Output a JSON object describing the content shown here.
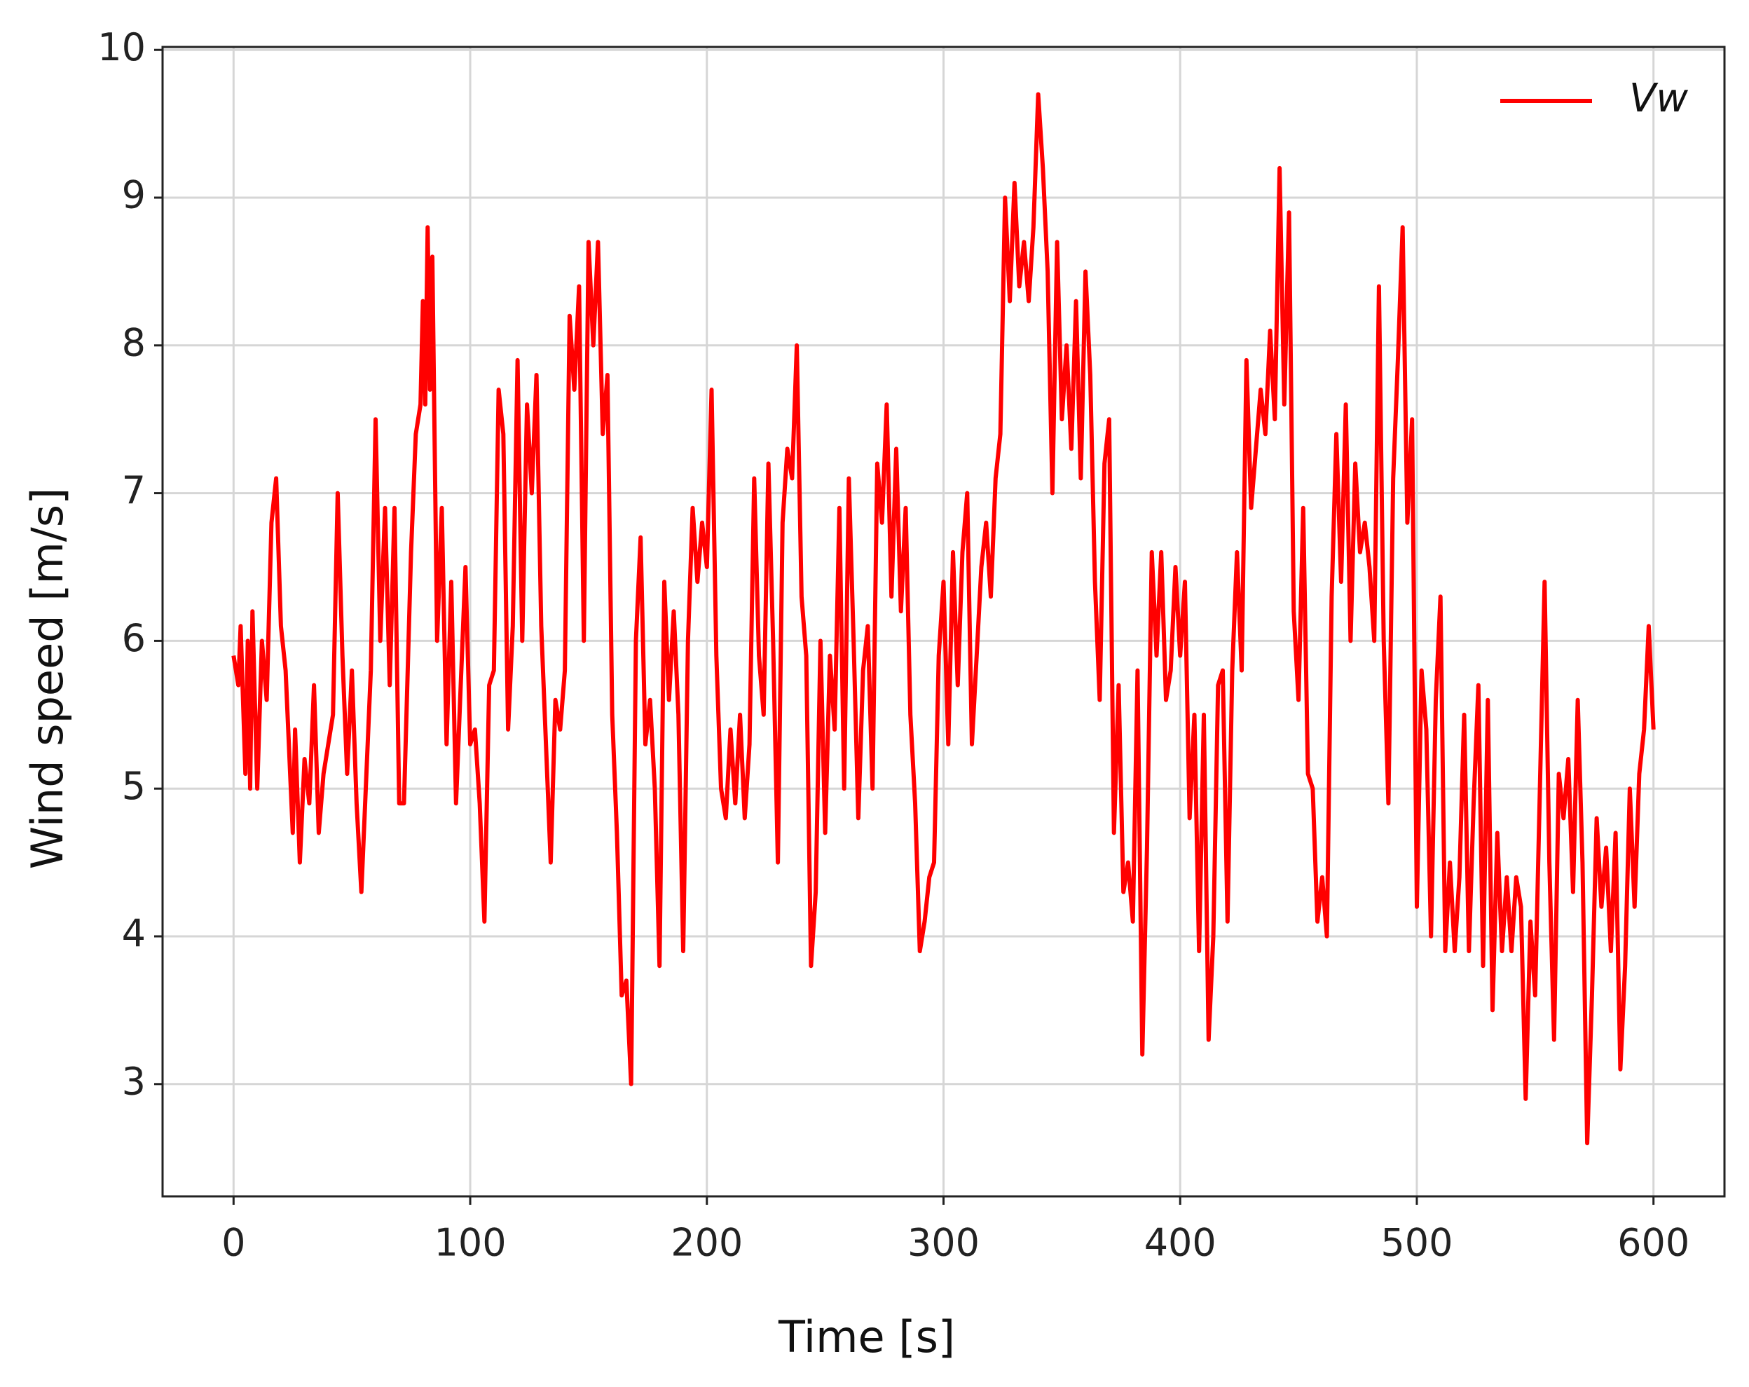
{
  "chart_data": {
    "type": "line",
    "x_label": "Time [s]",
    "y_label": "Wind speed [m/s]",
    "xlim": [
      -30,
      630
    ],
    "ylim": [
      2.24,
      10.02
    ],
    "xticks": [
      0,
      100,
      200,
      300,
      400,
      500,
      600
    ],
    "yticks": [
      3,
      4,
      5,
      6,
      7,
      8,
      9,
      10
    ],
    "grid": true,
    "legend": "upper right",
    "x": [
      0,
      2,
      3,
      5,
      6,
      7,
      8,
      10,
      12,
      14,
      16,
      18,
      20,
      22,
      25,
      26,
      28,
      30,
      32,
      34,
      36,
      38,
      42,
      44,
      46,
      48,
      50,
      52,
      54,
      58,
      60,
      62,
      64,
      66,
      68,
      70,
      72,
      75,
      77,
      79,
      80,
      81,
      82,
      83,
      84,
      86,
      88,
      90,
      92,
      94,
      96,
      98,
      100,
      102,
      104,
      106,
      108,
      110,
      112,
      114,
      116,
      118,
      120,
      122,
      124,
      126,
      128,
      130,
      134,
      136,
      138,
      140,
      142,
      144,
      146,
      148,
      150,
      152,
      154,
      156,
      158,
      160,
      162,
      164,
      166,
      168,
      170,
      172,
      174,
      176,
      178,
      180,
      182,
      184,
      186,
      188,
      190,
      192,
      194,
      196,
      198,
      200,
      202,
      204,
      206,
      208,
      210,
      212,
      214,
      216,
      218,
      220,
      222,
      224,
      226,
      228,
      230,
      232,
      234,
      236,
      238,
      240,
      242,
      244,
      246,
      248,
      250,
      252,
      254,
      256,
      258,
      260,
      262,
      264,
      266,
      268,
      270,
      272,
      274,
      276,
      278,
      280,
      282,
      284,
      286,
      288,
      290,
      292,
      294,
      296,
      298,
      300,
      302,
      304,
      306,
      308,
      310,
      312,
      314,
      316,
      318,
      320,
      322,
      324,
      326,
      328,
      330,
      332,
      334,
      336,
      338,
      340,
      342,
      344,
      346,
      348,
      350,
      352,
      354,
      356,
      358,
      360,
      362,
      364,
      366,
      368,
      370,
      372,
      374,
      376,
      378,
      380,
      382,
      384,
      386,
      388,
      390,
      392,
      394,
      396,
      398,
      400,
      402,
      404,
      406,
      408,
      410,
      412,
      414,
      416,
      418,
      420,
      422,
      424,
      426,
      428,
      430,
      432,
      434,
      436,
      438,
      440,
      442,
      444,
      446,
      448,
      450,
      452,
      454,
      456,
      458,
      460,
      462,
      464,
      466,
      468,
      470,
      472,
      474,
      476,
      478,
      480,
      482,
      484,
      486,
      488,
      490,
      492,
      494,
      496,
      498,
      500,
      502,
      504,
      506,
      508,
      510,
      512,
      514,
      516,
      518,
      520,
      522,
      524,
      526,
      528,
      530,
      532,
      534,
      536,
      538,
      540,
      542,
      544,
      546,
      548,
      550,
      552,
      554,
      556,
      558,
      560,
      562,
      564,
      566,
      568,
      570,
      572,
      574,
      576,
      578,
      580,
      582,
      584,
      586,
      588,
      590,
      592,
      594,
      596,
      598,
      600
    ],
    "series": [
      {
        "name": "Vw",
        "color": "#ff0000",
        "values": [
          5.9,
          5.7,
          6.1,
          5.1,
          6.0,
          5.0,
          6.2,
          5.0,
          6.0,
          5.6,
          6.8,
          7.1,
          6.1,
          5.8,
          4.7,
          5.4,
          4.5,
          5.2,
          4.9,
          5.7,
          4.7,
          5.1,
          5.5,
          7.0,
          5.9,
          5.1,
          5.8,
          4.9,
          4.3,
          5.8,
          7.5,
          6.0,
          6.9,
          5.7,
          6.9,
          4.9,
          4.9,
          6.6,
          7.4,
          7.6,
          8.3,
          7.6,
          8.8,
          7.7,
          8.6,
          6.0,
          6.9,
          5.3,
          6.4,
          4.9,
          5.7,
          6.5,
          5.3,
          5.4,
          4.9,
          4.1,
          5.7,
          5.8,
          7.7,
          7.4,
          5.4,
          6.1,
          7.9,
          6.0,
          7.6,
          7.0,
          7.8,
          6.1,
          4.5,
          5.6,
          5.4,
          5.8,
          8.2,
          7.7,
          8.4,
          6.0,
          8.7,
          8.0,
          8.7,
          7.4,
          7.8,
          5.5,
          4.7,
          3.6,
          3.7,
          3.0,
          6.0,
          6.7,
          5.3,
          5.6,
          5.0,
          3.8,
          6.4,
          5.6,
          6.2,
          5.5,
          3.9,
          6.0,
          6.9,
          6.4,
          6.8,
          6.5,
          7.7,
          5.9,
          5.0,
          4.8,
          5.4,
          4.9,
          5.5,
          4.8,
          5.3,
          7.1,
          5.9,
          5.5,
          7.2,
          6.0,
          4.5,
          6.8,
          7.3,
          7.1,
          8.0,
          6.3,
          5.9,
          3.8,
          4.3,
          6.0,
          4.7,
          5.9,
          5.4,
          6.9,
          5.0,
          7.1,
          6.0,
          4.8,
          5.8,
          6.1,
          5.0,
          7.2,
          6.8,
          7.6,
          6.3,
          7.3,
          6.2,
          6.9,
          5.5,
          4.9,
          3.9,
          4.1,
          4.4,
          4.5,
          5.9,
          6.4,
          5.3,
          6.6,
          5.7,
          6.6,
          7.0,
          5.3,
          5.9,
          6.5,
          6.8,
          6.3,
          7.1,
          7.4,
          9.0,
          8.3,
          9.1,
          8.4,
          8.7,
          8.3,
          8.8,
          9.7,
          9.2,
          8.5,
          7.0,
          8.7,
          7.5,
          8.0,
          7.3,
          8.3,
          7.1,
          8.5,
          7.8,
          6.4,
          5.6,
          7.2,
          7.5,
          4.7,
          5.7,
          4.3,
          4.5,
          4.1,
          5.8,
          3.2,
          4.6,
          6.6,
          5.9,
          6.6,
          5.6,
          5.8,
          6.5,
          5.9,
          6.4,
          4.8,
          5.5,
          3.9,
          5.5,
          3.3,
          4.0,
          5.7,
          5.8,
          4.1,
          5.8,
          6.6,
          5.8,
          7.9,
          6.9,
          7.3,
          7.7,
          7.4,
          8.1,
          7.5,
          9.2,
          7.6,
          8.9,
          6.2,
          5.6,
          6.9,
          5.1,
          5.0,
          4.1,
          4.4,
          4.0,
          6.3,
          7.4,
          6.4,
          7.6,
          6.0,
          7.2,
          6.6,
          6.8,
          6.5,
          6.0,
          8.4,
          6.0,
          4.9,
          7.1,
          7.9,
          8.8,
          6.8,
          7.5,
          4.2,
          5.8,
          5.4,
          4.0,
          5.6,
          6.3,
          3.9,
          4.5,
          3.9,
          4.4,
          5.5,
          3.9,
          4.9,
          5.7,
          3.8,
          5.6,
          3.5,
          4.7,
          3.9,
          4.4,
          3.9,
          4.4,
          4.2,
          2.9,
          4.1,
          3.6,
          5.0,
          6.4,
          4.5,
          3.3,
          5.1,
          4.8,
          5.2,
          4.3,
          5.6,
          4.5,
          2.6,
          3.6,
          4.8,
          4.2,
          4.6,
          3.9,
          4.7,
          3.1,
          3.8,
          5.0,
          4.2,
          5.1,
          5.4,
          6.1,
          5.4
        ]
      }
    ]
  }
}
